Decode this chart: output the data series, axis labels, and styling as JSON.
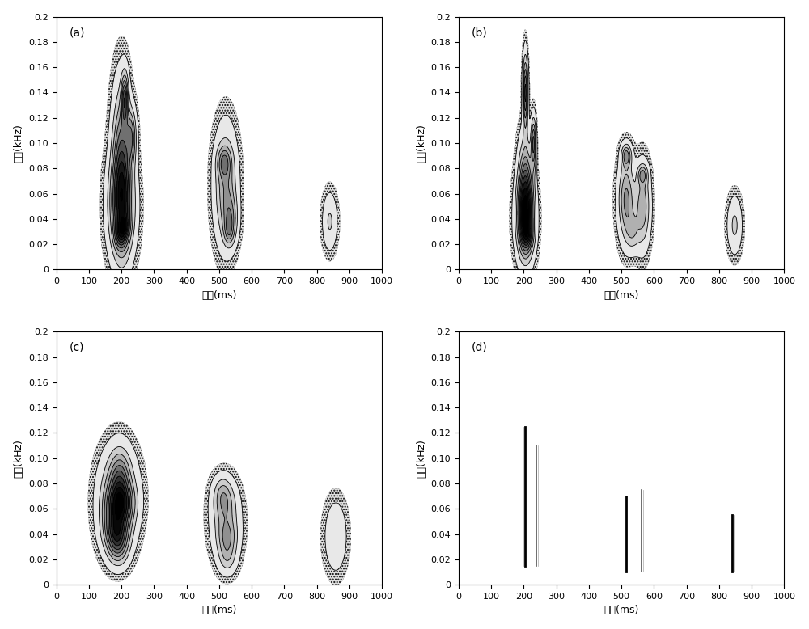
{
  "subplots": [
    "(a)",
    "(b)",
    "(c)",
    "(d)"
  ],
  "xlim": [
    0,
    1000
  ],
  "ylim": [
    0,
    0.2
  ],
  "xlabel": "时间(ms)",
  "ylabel": "频率(kHz)",
  "xticks": [
    0,
    100,
    200,
    300,
    400,
    500,
    600,
    700,
    800,
    900,
    1000
  ],
  "yticks": [
    0.0,
    0.02,
    0.04,
    0.06,
    0.08,
    0.1,
    0.12,
    0.14,
    0.16,
    0.18,
    0.2
  ],
  "ytick_labels": [
    "0",
    "0.02",
    "0.04",
    "0.06",
    "0.08",
    "0.10",
    "0.12",
    "0.14",
    "0.16",
    "0.18",
    "0.2"
  ],
  "bg_color": "white",
  "contour_linewidth": 0.6,
  "label_fontsize": 9,
  "tick_fontsize": 8
}
